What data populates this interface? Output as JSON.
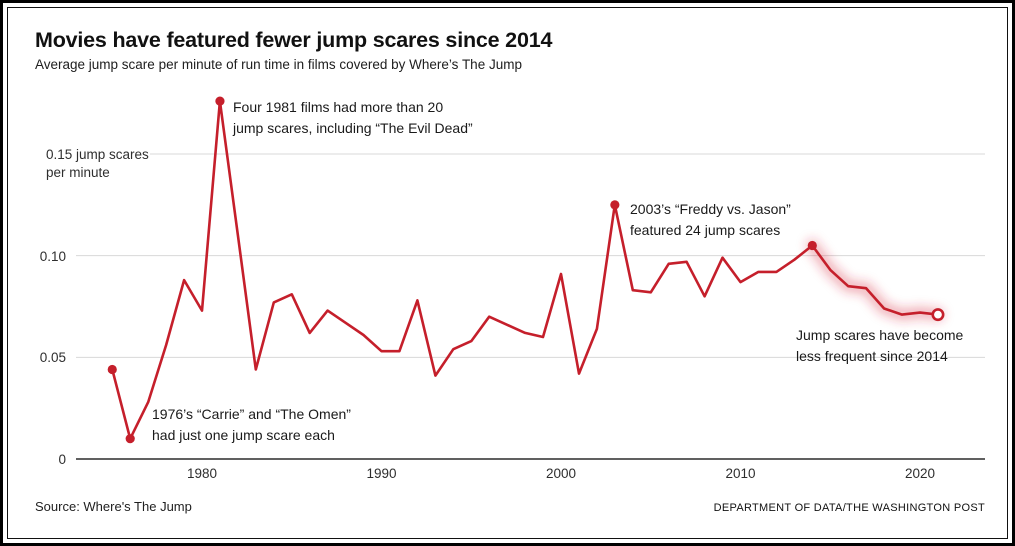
{
  "header": {
    "title": "Movies have featured fewer jump scares since 2014",
    "subtitle": "Average jump scare per minute of run time in films covered by Where’s The Jump"
  },
  "chart_data": {
    "type": "line",
    "title": "Movies have featured fewer jump scares since 2014",
    "xlabel": "",
    "ylabel": "jump scares per minute",
    "x": [
      1975,
      1976,
      1977,
      1978,
      1979,
      1980,
      1981,
      1982,
      1983,
      1984,
      1985,
      1986,
      1987,
      1988,
      1989,
      1990,
      1991,
      1992,
      1993,
      1994,
      1995,
      1996,
      1997,
      1998,
      1999,
      2000,
      2001,
      2002,
      2003,
      2004,
      2005,
      2006,
      2007,
      2008,
      2009,
      2010,
      2011,
      2012,
      2013,
      2014,
      2015,
      2016,
      2017,
      2018,
      2019,
      2020,
      2021
    ],
    "series": [
      {
        "name": "Average jump scares per minute",
        "values": [
          0.044,
          0.01,
          0.028,
          0.056,
          0.088,
          0.073,
          0.176,
          0.11,
          0.044,
          0.077,
          0.081,
          0.062,
          0.073,
          0.067,
          0.061,
          0.053,
          0.053,
          0.078,
          0.041,
          0.054,
          0.058,
          0.07,
          0.066,
          0.062,
          0.06,
          0.091,
          0.042,
          0.064,
          0.125,
          0.083,
          0.082,
          0.096,
          0.097,
          0.08,
          0.099,
          0.087,
          0.092,
          0.092,
          0.098,
          0.105,
          0.093,
          0.085,
          0.084,
          0.074,
          0.071,
          0.072,
          0.071
        ]
      }
    ],
    "ylim": [
      0,
      0.18
    ],
    "xlim": [
      1974.5,
      2023
    ],
    "grid": "horizontal",
    "legend_position": "none",
    "line_color": "#c51f2b",
    "glow_color": "#d62839",
    "gridline_color": "#d8d8d8",
    "zeroline_color": "#4a4a4a",
    "highlight_from_year": 2014,
    "markers": {
      "filled_years": [
        1975,
        1976,
        1981,
        2003,
        2014
      ],
      "open_years": [
        2021
      ]
    },
    "yticks": [
      {
        "value": 0.15,
        "label": "0.15 jump scares\nper minute"
      },
      {
        "value": 0.1,
        "label": "0.10"
      },
      {
        "value": 0.05,
        "label": "0.05"
      },
      {
        "value": 0,
        "label": "0"
      }
    ],
    "xticks": [
      {
        "value": 1980,
        "label": "1980"
      },
      {
        "value": 1990,
        "label": "1990"
      },
      {
        "value": 2000,
        "label": "2000"
      },
      {
        "value": 2010,
        "label": "2010"
      },
      {
        "value": 2020,
        "label": "2020"
      }
    ],
    "annotations": [
      {
        "id": "peak-1981",
        "text": "Four 1981 films had more than 20\njump scares, including “The Evil Dead”"
      },
      {
        "id": "peak-2003",
        "text": "2003’s “Freddy vs. Jason”\nfeatured 24 jump scares"
      },
      {
        "id": "low-1976",
        "text": "1976’s “Carrie” and “The Omen”\nhad just one jump scare each"
      },
      {
        "id": "trend-2014",
        "text": "Jump scares have become\nless frequent since 2014"
      }
    ]
  },
  "footer": {
    "source": "Source: Where's The Jump",
    "credit": "DEPARTMENT OF DATA/THE WASHINGTON POST"
  }
}
